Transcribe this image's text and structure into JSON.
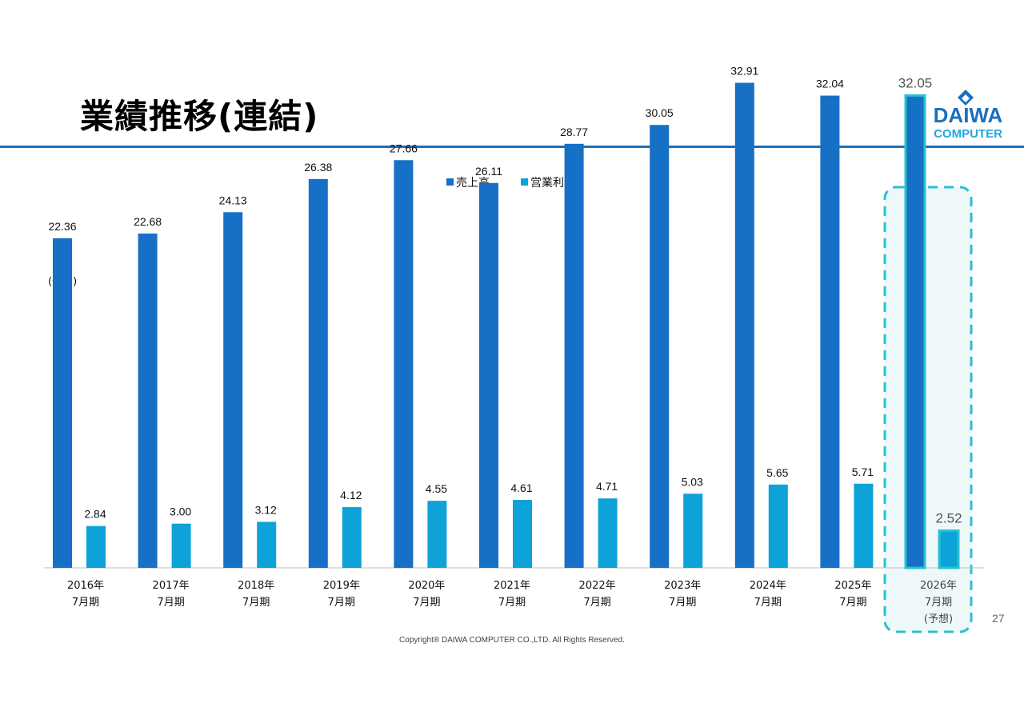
{
  "page": {
    "title": "業績推移(連結)",
    "copyright": "Copyright® DAIWA COMPUTER CO.,LTD. All Rights Reserved.",
    "page_number": "27"
  },
  "logo": {
    "line1": "DAIWA",
    "line2": "COMPUTER"
  },
  "colors": {
    "accent_rule": "#1a6fbf",
    "sales": "#1670c6",
    "profit": "#0ea3d8",
    "forecast_frame": "#27c2cf",
    "forecast_fill": "#eef8fb"
  },
  "chart_data": {
    "type": "bar",
    "unit_label": "(億円)",
    "categories": [
      [
        "2016年",
        "7月期"
      ],
      [
        "2017年",
        "7月期"
      ],
      [
        "2018年",
        "7月期"
      ],
      [
        "2019年",
        "7月期"
      ],
      [
        "2020年",
        "7月期"
      ],
      [
        "2021年",
        "7月期"
      ],
      [
        "2022年",
        "7月期"
      ],
      [
        "2023年",
        "7月期"
      ],
      [
        "2024年",
        "7月期"
      ],
      [
        "2025年",
        "7月期"
      ],
      [
        "2026年",
        "7月期",
        "(予想)"
      ]
    ],
    "series": [
      {
        "name": "売上高",
        "values": [
          22.36,
          22.68,
          24.13,
          26.38,
          27.66,
          26.11,
          28.77,
          30.05,
          32.91,
          32.04,
          32.05
        ],
        "labels": [
          "22.36",
          "22.68",
          "24.13",
          "26.38",
          "27.66",
          "26.11",
          "28.77",
          "30.05",
          "32.91",
          "32.04",
          "32.05"
        ]
      },
      {
        "name": "営業利益",
        "values": [
          2.84,
          3.0,
          3.12,
          4.12,
          4.55,
          4.61,
          4.71,
          5.03,
          5.65,
          5.71,
          2.52
        ],
        "labels": [
          "2.84",
          "3.00",
          "3.12",
          "4.12",
          "4.55",
          "4.61",
          "4.71",
          "5.03",
          "5.65",
          "5.71",
          "2.52"
        ]
      }
    ],
    "forecast_index": 10,
    "legend_position": "top",
    "ylim": [
      0,
      35
    ],
    "grid": false
  }
}
